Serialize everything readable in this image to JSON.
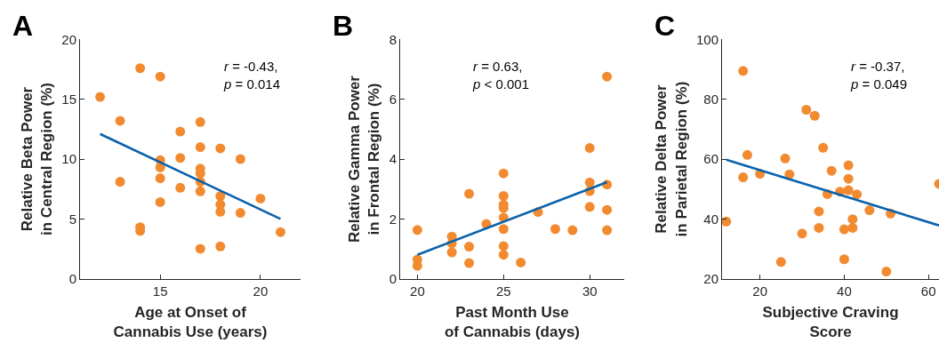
{
  "chart_data": [
    {
      "type": "scatter",
      "title": "A",
      "xlabel": "Age at Onset of\nCannabis Use (years)",
      "ylabel": "Relative Beta Power\nin Central Region (%)",
      "annotations": [
        "r = -0.43,\np = 0.014"
      ],
      "xlim": [
        11,
        22
      ],
      "xticks": [
        15,
        20
      ],
      "ylim": [
        0,
        20
      ],
      "yticks": [
        0,
        5,
        10,
        15,
        20
      ],
      "series": [
        {
          "color": "#f28a30",
          "marker": "circle",
          "x": [
            12,
            13,
            13,
            14,
            14,
            14,
            15,
            15,
            15,
            15,
            15,
            16,
            16,
            16,
            17,
            17,
            17,
            17,
            17,
            17,
            17,
            18,
            18,
            18,
            18,
            18,
            19,
            19,
            20,
            21
          ],
          "values": [
            15.2,
            13.2,
            8.1,
            17.6,
            4.3,
            4.0,
            16.9,
            9.9,
            9.3,
            8.4,
            6.4,
            12.3,
            10.1,
            7.6,
            13.1,
            11.0,
            9.2,
            8.8,
            8.1,
            7.3,
            2.5,
            10.9,
            6.9,
            6.2,
            5.6,
            2.7,
            10.0,
            5.5,
            6.7,
            3.9
          ]
        },
        {
          "type": "line",
          "marker": "none",
          "color": "#0a62ac",
          "x": [
            12,
            21
          ],
          "values": [
            12.1,
            5.0
          ]
        }
      ]
    },
    {
      "type": "scatter",
      "title": "B",
      "xlabel": "Past Month Use\nof Cannabis (days)",
      "ylabel": "Relative Gamma Power\nin Frontal Region (%)",
      "annotations": [
        "r = 0.63,\np < 0.001"
      ],
      "xlim": [
        19,
        32
      ],
      "xticks": [
        20,
        25,
        30
      ],
      "ylim": [
        0,
        8
      ],
      "yticks": [
        0,
        2,
        4,
        6,
        8
      ],
      "series": [
        {
          "color": "#f28a30",
          "marker": "circle",
          "x": [
            20,
            20,
            20,
            22,
            22,
            22,
            23,
            23,
            23,
            24,
            25,
            25,
            25,
            25,
            25,
            25,
            25,
            25,
            26,
            27,
            28,
            29,
            30,
            30,
            30,
            30,
            31,
            31,
            31,
            31
          ],
          "values": [
            1.63,
            0.64,
            0.43,
            1.41,
            1.18,
            0.88,
            2.84,
            1.07,
            0.52,
            1.83,
            3.52,
            2.77,
            2.48,
            2.36,
            2.04,
            1.66,
            1.09,
            0.8,
            0.54,
            2.23,
            1.66,
            1.62,
            4.37,
            3.22,
            2.93,
            2.4,
            6.76,
            3.15,
            2.3,
            1.62
          ]
        },
        {
          "type": "line",
          "marker": "none",
          "color": "#0a62ac",
          "x": [
            20,
            31
          ],
          "values": [
            0.8,
            3.23
          ]
        }
      ]
    },
    {
      "type": "scatter",
      "title": "C",
      "xlabel": "Subjective Craving\nScore",
      "ylabel": "Relative Delta Power\nin Parietal Region (%)",
      "annotations": [
        "r = -0.37,\np = 0.049"
      ],
      "xlim": [
        11,
        62.5
      ],
      "xticks": [
        20,
        40,
        60
      ],
      "ylim": [
        20,
        100
      ],
      "yticks": [
        20,
        40,
        60,
        80,
        100
      ],
      "series": [
        {
          "color": "#f28a30",
          "marker": "circle",
          "x": [
            12,
            16,
            16,
            17,
            20,
            25,
            26,
            27,
            30,
            31,
            33,
            34,
            34,
            35,
            36,
            37,
            39,
            40,
            40,
            41,
            41,
            41,
            42,
            42,
            43,
            46,
            50,
            51,
            62.5
          ],
          "values": [
            39.1,
            89.5,
            53.9,
            61.4,
            55.1,
            25.6,
            60.2,
            54.9,
            35.1,
            76.5,
            74.5,
            42.5,
            37.0,
            63.8,
            48.3,
            56.1,
            49.1,
            36.5,
            26.5,
            57.9,
            53.4,
            49.6,
            39.9,
            37.0,
            48.2,
            42.9,
            22.4,
            41.8,
            51.7
          ]
        },
        {
          "type": "line",
          "marker": "none",
          "color": "#0a62ac",
          "x": [
            12,
            62.5
          ],
          "values": [
            59.8,
            37.8
          ]
        }
      ]
    }
  ]
}
